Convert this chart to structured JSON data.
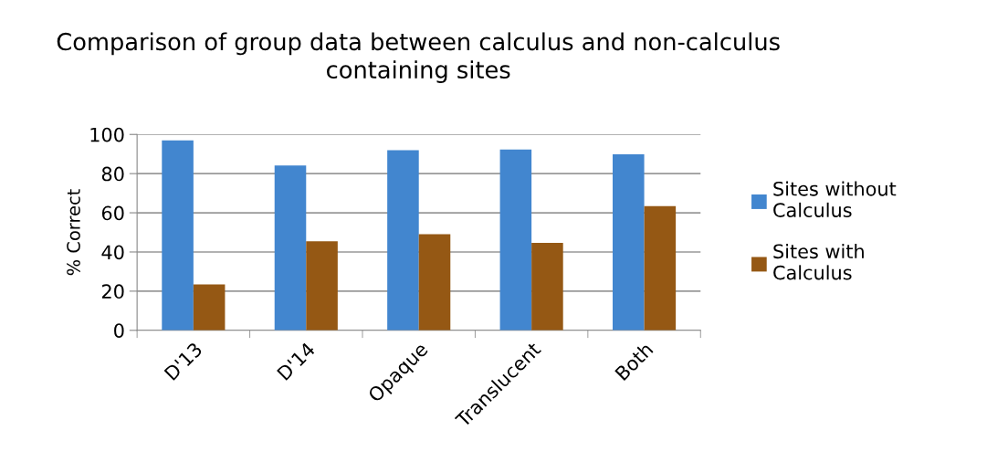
{
  "chart_data": {
    "type": "bar",
    "title": "Comparison of group data between calculus and non-calculus containing sites",
    "ylabel": "% Correct",
    "categories": [
      "D'13",
      "D'14",
      "Opaque",
      "Translucent",
      "Both"
    ],
    "series": [
      {
        "name": "Sites without Calculus",
        "color": "#4286cf",
        "values": [
          97.0,
          84.2,
          91.9,
          92.3,
          89.9
        ]
      },
      {
        "name": "Sites with Calculus",
        "color": "#955814",
        "values": [
          23.4,
          45.5,
          49.1,
          44.6,
          63.4
        ]
      }
    ],
    "ylim": [
      0,
      100
    ],
    "yticks": [
      0,
      20,
      40,
      60,
      80,
      100
    ],
    "grid": "y",
    "legend": "right"
  }
}
